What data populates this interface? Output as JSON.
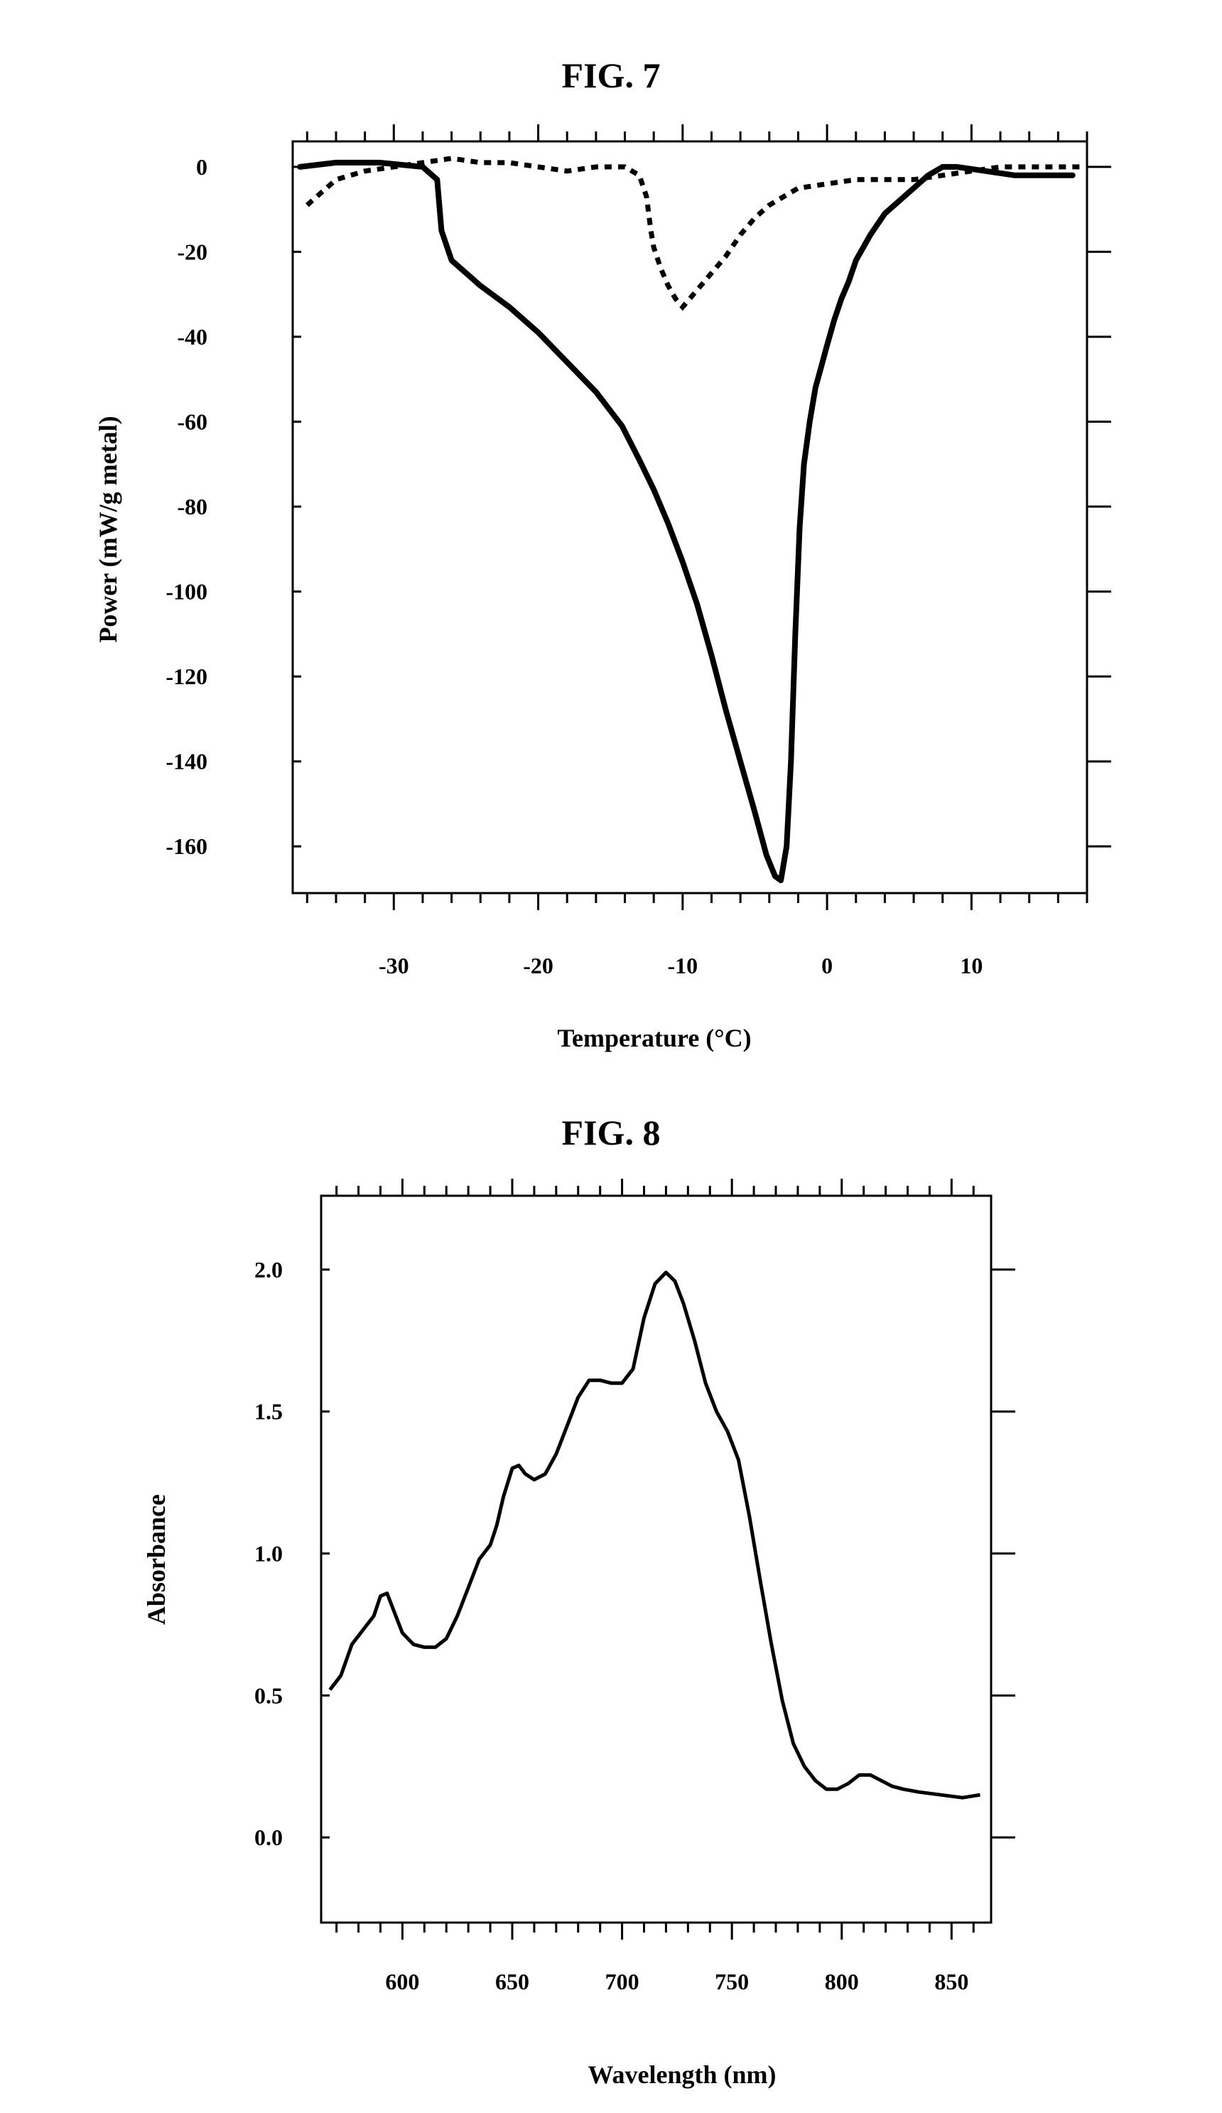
{
  "chart_data": [
    {
      "type": "line",
      "title": "FIG. 7",
      "xlabel": "Temperature (°C)",
      "ylabel": "Power (mW/g metal)",
      "xlim": [
        -37,
        18
      ],
      "ylim": [
        -171,
        6
      ],
      "xticks": [
        -30,
        -20,
        -10,
        0,
        10
      ],
      "xtick_labels": [
        "-30",
        "-20",
        "-10",
        "0",
        "10"
      ],
      "yticks": [
        0,
        -20,
        -40,
        -60,
        -80,
        -100,
        -120,
        -140,
        -160
      ],
      "ytick_labels": [
        "0",
        "-20",
        "-40",
        "-60",
        "-80",
        "-100",
        "-120",
        "-140",
        "-160"
      ],
      "grid": false,
      "series": [
        {
          "name": "solid",
          "style": "solid",
          "x": [
            -36.5,
            -34,
            -31,
            -28,
            -27,
            -26.7,
            -26,
            -24,
            -22,
            -20,
            -18,
            -16,
            -14.2,
            -13,
            -12,
            -11,
            -10,
            -9,
            -8,
            -7,
            -6,
            -5,
            -4.2,
            -3.6,
            -3.2,
            -2.8,
            -2.5,
            -2.2,
            -1.9,
            -1.6,
            -1.2,
            -0.8,
            -0.4,
            0,
            0.5,
            1,
            1.5,
            2,
            3,
            4,
            5,
            6,
            7,
            8,
            9,
            11,
            13,
            15,
            17
          ],
          "y": [
            0,
            1,
            1,
            0,
            -3,
            -15,
            -22,
            -28,
            -33,
            -39,
            -46,
            -53,
            -61,
            -69,
            -76,
            -84,
            -93,
            -103,
            -115,
            -128,
            -140,
            -152,
            -162,
            -167,
            -168,
            -160,
            -140,
            -110,
            -85,
            -70,
            -60,
            -52,
            -47,
            -42,
            -36,
            -31,
            -27,
            -22,
            -16,
            -11,
            -8,
            -5,
            -2,
            0,
            0,
            -1,
            -2,
            -2,
            -2
          ]
        },
        {
          "name": "dashed",
          "style": "dashed",
          "x": [
            -36,
            -34,
            -32,
            -30,
            -28,
            -26,
            -24,
            -22,
            -20,
            -18,
            -16,
            -14,
            -13,
            -12.5,
            -12.2,
            -12,
            -11.5,
            -11,
            -10.5,
            -10,
            -9.5,
            -9,
            -8,
            -7,
            -6,
            -5,
            -4,
            -3,
            -2,
            0,
            2,
            4,
            6,
            8,
            10,
            12,
            14,
            16,
            17.5
          ],
          "y": [
            -9,
            -3,
            -1,
            0,
            1,
            2,
            1,
            1,
            0,
            -1,
            0,
            0,
            -2,
            -7,
            -15,
            -19,
            -24,
            -28,
            -31,
            -33,
            -31,
            -29,
            -25,
            -21,
            -16,
            -12,
            -9,
            -7,
            -5,
            -4,
            -3,
            -3,
            -3,
            -2,
            -1,
            0,
            0,
            0,
            0
          ]
        }
      ]
    },
    {
      "type": "line",
      "title": "FIG. 8",
      "xlabel": "Wavelength (nm)",
      "ylabel": "Absorbance",
      "xlim": [
        563,
        868
      ],
      "ylim": [
        -0.3,
        2.26
      ],
      "xticks": [
        600,
        650,
        700,
        750,
        800,
        850
      ],
      "xtick_labels": [
        "600",
        "650",
        "700",
        "750",
        "800",
        "850"
      ],
      "yticks": [
        0.0,
        0.5,
        1.0,
        1.5,
        2.0
      ],
      "ytick_labels": [
        "0.0",
        "0.5",
        "1.0",
        "1.5",
        "2.0"
      ],
      "grid": false,
      "series": [
        {
          "name": "absorbance",
          "style": "solid",
          "x": [
            567,
            572,
            577,
            582,
            587,
            590,
            593,
            596,
            600,
            605,
            610,
            615,
            620,
            625,
            630,
            635,
            640,
            643,
            646,
            650,
            653,
            656,
            660,
            665,
            670,
            675,
            680,
            685,
            690,
            695,
            700,
            705,
            710,
            715,
            720,
            724,
            728,
            733,
            738,
            743,
            748,
            753,
            758,
            763,
            768,
            773,
            778,
            783,
            788,
            793,
            798,
            803,
            808,
            813,
            818,
            823,
            828,
            835,
            845,
            855,
            863
          ],
          "y": [
            0.52,
            0.57,
            0.68,
            0.73,
            0.78,
            0.85,
            0.86,
            0.8,
            0.72,
            0.68,
            0.67,
            0.67,
            0.7,
            0.78,
            0.88,
            0.98,
            1.03,
            1.1,
            1.2,
            1.3,
            1.31,
            1.28,
            1.26,
            1.28,
            1.35,
            1.45,
            1.55,
            1.61,
            1.61,
            1.6,
            1.6,
            1.65,
            1.83,
            1.95,
            1.99,
            1.96,
            1.88,
            1.75,
            1.6,
            1.5,
            1.43,
            1.33,
            1.13,
            0.9,
            0.68,
            0.48,
            0.33,
            0.25,
            0.2,
            0.17,
            0.17,
            0.19,
            0.22,
            0.22,
            0.2,
            0.18,
            0.17,
            0.16,
            0.15,
            0.14,
            0.15
          ]
        }
      ]
    }
  ]
}
